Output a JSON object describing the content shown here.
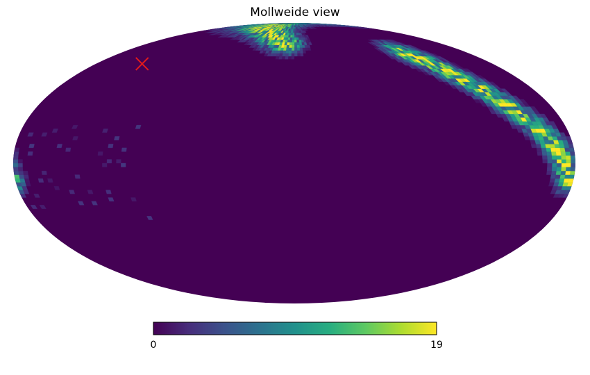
{
  "chart_data": {
    "type": "heatmap",
    "projection": "Mollweide",
    "title": "Mollweide view",
    "colormap": "viridis",
    "colormap_stops": [
      "#440154",
      "#472d7b",
      "#3b528b",
      "#2c728e",
      "#21918c",
      "#28ae80",
      "#5ec962",
      "#addc30",
      "#fde725"
    ],
    "value_range": [
      0,
      19
    ],
    "colorbar": {
      "orientation": "horizontal",
      "placement": "bottom",
      "tick_labels": [
        "0",
        "19"
      ]
    },
    "marker": {
      "symbol": "x",
      "color": "#e31a1c",
      "lon_deg": 138,
      "lat_deg": 55
    },
    "background_value": 0,
    "density_bands": [
      {
        "path": [
          [
            80,
            85
          ],
          [
            60,
            83
          ],
          [
            45,
            80
          ],
          [
            30,
            76
          ],
          [
            20,
            72
          ],
          [
            10,
            69
          ]
        ],
        "peak": 19,
        "width_deg": 5
      },
      {
        "path": [
          [
            -115,
            62
          ],
          [
            -125,
            55
          ],
          [
            -135,
            45
          ],
          [
            -145,
            35
          ],
          [
            -155,
            25
          ],
          [
            -163,
            16
          ],
          [
            -170,
            6
          ],
          [
            -174,
            -2
          ],
          [
            -177,
            -8
          ]
        ],
        "peak": 19,
        "width_deg": 5
      }
    ],
    "sparse_region": {
      "lon_range": [
        100,
        178
      ],
      "lat_range": [
        -30,
        20
      ],
      "max_value": 3
    }
  }
}
